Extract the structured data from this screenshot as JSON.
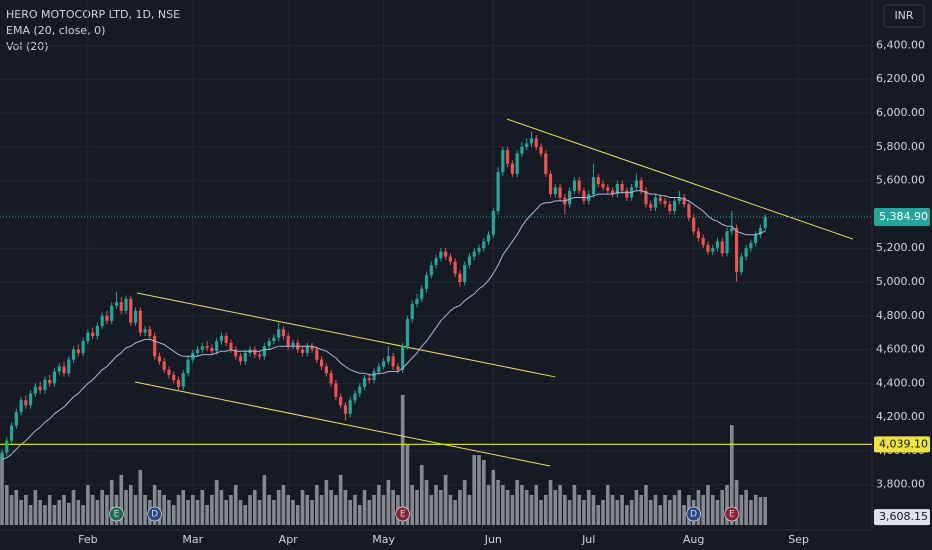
{
  "chart_data": {
    "type": "candlestick",
    "title": "HERO MOTOCORP LTD, 1D, NSE",
    "indicators": [
      "EMA (20, close, 0)",
      "Vol (20)"
    ],
    "currency": "INR",
    "ylim": [
      3532,
      6669
    ],
    "yticks": [
      {
        "value": 3800,
        "label": "3,800.00"
      },
      {
        "value": 4000,
        "label": "4,000.00"
      },
      {
        "value": 4200,
        "label": "4,200.00"
      },
      {
        "value": 4400,
        "label": "4,400.00"
      },
      {
        "value": 4600,
        "label": "4,600.00"
      },
      {
        "value": 4800,
        "label": "4,800.00"
      },
      {
        "value": 5000,
        "label": "5,000.00"
      },
      {
        "value": 5200,
        "label": "5,200.00"
      },
      {
        "value": 5400,
        "label": "5,400.00"
      },
      {
        "value": 5600,
        "label": "5,600.00"
      },
      {
        "value": 5800,
        "label": "5,800.00"
      },
      {
        "value": 6000,
        "label": "6,000.00"
      },
      {
        "value": 6200,
        "label": "6,200.00"
      },
      {
        "value": 6400,
        "label": "6,400.00"
      }
    ],
    "xticks": [
      {
        "value": 18,
        "label": "Feb"
      },
      {
        "value": 40,
        "label": "Mar"
      },
      {
        "value": 60,
        "label": "Apr"
      },
      {
        "value": 80,
        "label": "May"
      },
      {
        "value": 103,
        "label": "Jun"
      },
      {
        "value": 123,
        "label": "Jul"
      },
      {
        "value": 145,
        "label": "Aug"
      },
      {
        "value": 167,
        "label": "Sep"
      }
    ],
    "up_color": "#26a69a",
    "down_color": "#ef5350",
    "ema_color": "#a7b8d9",
    "volume_color": "#9a9ca3",
    "line_color": "#e6e35a",
    "candles": [
      [
        3960,
        4010,
        3930,
        3990
      ],
      [
        3990,
        4080,
        3970,
        4060
      ],
      [
        4060,
        4170,
        4040,
        4150
      ],
      [
        4150,
        4250,
        4130,
        4230
      ],
      [
        4230,
        4320,
        4210,
        4300
      ],
      [
        4300,
        4330,
        4250,
        4270
      ],
      [
        4270,
        4360,
        4250,
        4340
      ],
      [
        4340,
        4400,
        4320,
        4380
      ],
      [
        4380,
        4410,
        4340,
        4360
      ],
      [
        4360,
        4440,
        4340,
        4420
      ],
      [
        4420,
        4450,
        4380,
        4400
      ],
      [
        4400,
        4490,
        4380,
        4470
      ],
      [
        4470,
        4520,
        4450,
        4500
      ],
      [
        4500,
        4530,
        4440,
        4460
      ],
      [
        4460,
        4560,
        4440,
        4540
      ],
      [
        4540,
        4620,
        4520,
        4600
      ],
      [
        4600,
        4630,
        4560,
        4580
      ],
      [
        4580,
        4670,
        4560,
        4650
      ],
      [
        4650,
        4720,
        4630,
        4700
      ],
      [
        4700,
        4730,
        4660,
        4680
      ],
      [
        4680,
        4760,
        4660,
        4740
      ],
      [
        4740,
        4820,
        4720,
        4800
      ],
      [
        4800,
        4830,
        4750,
        4770
      ],
      [
        4770,
        4880,
        4750,
        4860
      ],
      [
        4860,
        4940,
        4840,
        4880
      ],
      [
        4880,
        4910,
        4810,
        4830
      ],
      [
        4830,
        4920,
        4810,
        4900
      ],
      [
        4900,
        4920,
        4740,
        4760
      ],
      [
        4760,
        4850,
        4740,
        4830
      ],
      [
        4830,
        4850,
        4680,
        4700
      ],
      [
        4700,
        4740,
        4680,
        4720
      ],
      [
        4720,
        4740,
        4660,
        4680
      ],
      [
        4680,
        4700,
        4540,
        4560
      ],
      [
        4560,
        4580,
        4510,
        4530
      ],
      [
        4530,
        4550,
        4460,
        4480
      ],
      [
        4480,
        4500,
        4430,
        4450
      ],
      [
        4450,
        4470,
        4400,
        4420
      ],
      [
        4420,
        4440,
        4360,
        4380
      ],
      [
        4380,
        4480,
        4360,
        4460
      ],
      [
        4460,
        4560,
        4440,
        4540
      ],
      [
        4540,
        4600,
        4520,
        4580
      ],
      [
        4580,
        4620,
        4560,
        4600
      ],
      [
        4600,
        4640,
        4580,
        4620
      ],
      [
        4620,
        4650,
        4590,
        4610
      ],
      [
        4610,
        4630,
        4570,
        4590
      ],
      [
        4590,
        4670,
        4570,
        4650
      ],
      [
        4650,
        4700,
        4630,
        4680
      ],
      [
        4680,
        4700,
        4620,
        4640
      ],
      [
        4640,
        4660,
        4580,
        4600
      ],
      [
        4600,
        4620,
        4540,
        4560
      ],
      [
        4560,
        4580,
        4510,
        4530
      ],
      [
        4530,
        4600,
        4510,
        4580
      ],
      [
        4580,
        4620,
        4560,
        4600
      ],
      [
        4600,
        4620,
        4550,
        4570
      ],
      [
        4570,
        4590,
        4540,
        4560
      ],
      [
        4560,
        4640,
        4540,
        4620
      ],
      [
        4620,
        4670,
        4600,
        4650
      ],
      [
        4650,
        4690,
        4630,
        4670
      ],
      [
        4670,
        4760,
        4650,
        4720
      ],
      [
        4720,
        4740,
        4660,
        4680
      ],
      [
        4680,
        4700,
        4600,
        4620
      ],
      [
        4620,
        4660,
        4600,
        4640
      ],
      [
        4640,
        4660,
        4580,
        4600
      ],
      [
        4600,
        4620,
        4560,
        4580
      ],
      [
        4580,
        4640,
        4560,
        4620
      ],
      [
        4620,
        4640,
        4580,
        4600
      ],
      [
        4600,
        4620,
        4520,
        4540
      ],
      [
        4540,
        4560,
        4480,
        4500
      ],
      [
        4500,
        4520,
        4440,
        4460
      ],
      [
        4460,
        4480,
        4380,
        4400
      ],
      [
        4400,
        4420,
        4300,
        4320
      ],
      [
        4320,
        4340,
        4250,
        4270
      ],
      [
        4270,
        4290,
        4180,
        4220
      ],
      [
        4220,
        4320,
        4200,
        4300
      ],
      [
        4300,
        4360,
        4280,
        4340
      ],
      [
        4340,
        4400,
        4320,
        4380
      ],
      [
        4380,
        4450,
        4360,
        4430
      ],
      [
        4430,
        4460,
        4400,
        4420
      ],
      [
        4420,
        4490,
        4400,
        4470
      ],
      [
        4470,
        4520,
        4450,
        4500
      ],
      [
        4500,
        4550,
        4480,
        4530
      ],
      [
        4530,
        4620,
        4510,
        4560
      ],
      [
        4560,
        4580,
        4480,
        4500
      ],
      [
        4500,
        4520,
        4460,
        4480
      ],
      [
        4480,
        4640,
        4460,
        4620
      ],
      [
        4620,
        4800,
        4600,
        4780
      ],
      [
        4780,
        4890,
        4760,
        4870
      ],
      [
        4870,
        4930,
        4850,
        4900
      ],
      [
        4900,
        4980,
        4880,
        4960
      ],
      [
        4960,
        5060,
        4940,
        5040
      ],
      [
        5040,
        5120,
        5020,
        5100
      ],
      [
        5100,
        5160,
        5080,
        5140
      ],
      [
        5140,
        5200,
        5120,
        5180
      ],
      [
        5180,
        5200,
        5130,
        5150
      ],
      [
        5150,
        5170,
        5100,
        5120
      ],
      [
        5120,
        5140,
        5030,
        5050
      ],
      [
        5050,
        5070,
        4970,
        5000
      ],
      [
        5000,
        5120,
        4980,
        5100
      ],
      [
        5100,
        5170,
        5080,
        5150
      ],
      [
        5150,
        5200,
        5130,
        5180
      ],
      [
        5180,
        5220,
        5160,
        5200
      ],
      [
        5200,
        5260,
        5180,
        5240
      ],
      [
        5240,
        5300,
        5220,
        5280
      ],
      [
        5280,
        5440,
        5260,
        5420
      ],
      [
        5420,
        5680,
        5400,
        5650
      ],
      [
        5650,
        5800,
        5630,
        5780
      ],
      [
        5780,
        5800,
        5680,
        5700
      ],
      [
        5700,
        5720,
        5620,
        5640
      ],
      [
        5640,
        5780,
        5620,
        5760
      ],
      [
        5760,
        5830,
        5740,
        5800
      ],
      [
        5800,
        5850,
        5780,
        5820
      ],
      [
        5820,
        5890,
        5800,
        5850
      ],
      [
        5850,
        5870,
        5780,
        5800
      ],
      [
        5800,
        5820,
        5740,
        5760
      ],
      [
        5760,
        5780,
        5620,
        5640
      ],
      [
        5640,
        5660,
        5500,
        5520
      ],
      [
        5520,
        5580,
        5500,
        5560
      ],
      [
        5560,
        5580,
        5480,
        5500
      ],
      [
        5500,
        5520,
        5400,
        5460
      ],
      [
        5460,
        5560,
        5440,
        5540
      ],
      [
        5540,
        5620,
        5520,
        5600
      ],
      [
        5600,
        5620,
        5520,
        5540
      ],
      [
        5540,
        5560,
        5460,
        5480
      ],
      [
        5480,
        5540,
        5460,
        5520
      ],
      [
        5520,
        5700,
        5500,
        5620
      ],
      [
        5620,
        5640,
        5560,
        5580
      ],
      [
        5580,
        5600,
        5540,
        5560
      ],
      [
        5560,
        5580,
        5520,
        5540
      ],
      [
        5540,
        5560,
        5500,
        5520
      ],
      [
        5520,
        5600,
        5500,
        5580
      ],
      [
        5580,
        5600,
        5520,
        5540
      ],
      [
        5540,
        5560,
        5480,
        5500
      ],
      [
        5500,
        5580,
        5480,
        5560
      ],
      [
        5560,
        5640,
        5540,
        5600
      ],
      [
        5600,
        5620,
        5520,
        5540
      ],
      [
        5540,
        5560,
        5440,
        5460
      ],
      [
        5460,
        5480,
        5420,
        5440
      ],
      [
        5440,
        5520,
        5420,
        5500
      ],
      [
        5500,
        5520,
        5460,
        5480
      ],
      [
        5480,
        5500,
        5440,
        5460
      ],
      [
        5460,
        5480,
        5400,
        5420
      ],
      [
        5420,
        5500,
        5400,
        5480
      ],
      [
        5480,
        5540,
        5460,
        5500
      ],
      [
        5500,
        5520,
        5440,
        5460
      ],
      [
        5460,
        5480,
        5360,
        5380
      ],
      [
        5380,
        5400,
        5280,
        5300
      ],
      [
        5300,
        5320,
        5240,
        5260
      ],
      [
        5260,
        5280,
        5200,
        5220
      ],
      [
        5220,
        5240,
        5160,
        5180
      ],
      [
        5180,
        5220,
        5160,
        5200
      ],
      [
        5200,
        5260,
        5180,
        5240
      ],
      [
        5240,
        5260,
        5150,
        5170
      ],
      [
        5170,
        5320,
        5150,
        5300
      ],
      [
        5300,
        5420,
        5280,
        5320
      ],
      [
        5320,
        5340,
        5000,
        5060
      ],
      [
        5060,
        5170,
        5040,
        5150
      ],
      [
        5150,
        5220,
        5130,
        5200
      ],
      [
        5200,
        5250,
        5180,
        5230
      ],
      [
        5230,
        5300,
        5210,
        5280
      ],
      [
        5280,
        5340,
        5260,
        5320
      ],
      [
        5320,
        5400,
        5300,
        5384.9
      ]
    ],
    "ema": [
      3950,
      3960,
      3980,
      4010,
      4040,
      4060,
      4090,
      4120,
      4140,
      4170,
      4190,
      4220,
      4240,
      4260,
      4290,
      4320,
      4340,
      4370,
      4400,
      4420,
      4450,
      4480,
      4500,
      4530,
      4560,
      4580,
      4610,
      4620,
      4640,
      4650,
      4660,
      4660,
      4650,
      4640,
      4630,
      4610,
      4590,
      4570,
      4560,
      4560,
      4560,
      4560,
      4570,
      4570,
      4570,
      4580,
      4590,
      4590,
      4600,
      4590,
      4590,
      4590,
      4590,
      4590,
      4590,
      4600,
      4600,
      4610,
      4620,
      4620,
      4620,
      4620,
      4620,
      4620,
      4620,
      4620,
      4610,
      4600,
      4590,
      4570,
      4550,
      4520,
      4500,
      4480,
      4470,
      4460,
      4460,
      4450,
      4450,
      4460,
      4460,
      4470,
      4470,
      4470,
      4490,
      4520,
      4550,
      4580,
      4620,
      4650,
      4690,
      4730,
      4770,
      4800,
      4830,
      4850,
      4860,
      4890,
      4910,
      4930,
      4960,
      4980,
      5010,
      5050,
      5100,
      5160,
      5200,
      5240,
      5280,
      5330,
      5370,
      5400,
      5430,
      5460,
      5470,
      5470,
      5480,
      5480,
      5480,
      5490,
      5500,
      5500,
      5500,
      5500,
      5510,
      5520,
      5520,
      5520,
      5520,
      5530,
      5530,
      5530,
      5530,
      5540,
      5540,
      5530,
      5520,
      5520,
      5510,
      5510,
      5500,
      5500,
      5500,
      5490,
      5480,
      5460,
      5440,
      5420,
      5390,
      5370,
      5360,
      5340,
      5330,
      5330,
      5300,
      5290,
      5280,
      5280,
      5280,
      5290,
      5300
    ],
    "volume": [
      70,
      40,
      30,
      35,
      25,
      30,
      20,
      35,
      25,
      20,
      30,
      20,
      25,
      30,
      22,
      35,
      25,
      20,
      40,
      30,
      25,
      35,
      30,
      45,
      30,
      50,
      35,
      40,
      30,
      55,
      30,
      25,
      40,
      35,
      30,
      25,
      20,
      30,
      35,
      25,
      30,
      25,
      35,
      20,
      30,
      45,
      35,
      25,
      30,
      40,
      25,
      20,
      30,
      35,
      25,
      50,
      30,
      25,
      35,
      40,
      30,
      25,
      20,
      35,
      30,
      25,
      40,
      30,
      45,
      35,
      30,
      50,
      35,
      25,
      30,
      20,
      35,
      25,
      30,
      40,
      30,
      45,
      35,
      30,
      130,
      80,
      40,
      35,
      60,
      45,
      30,
      40,
      35,
      50,
      30,
      25,
      35,
      45,
      30,
      70,
      70,
      65,
      40,
      55,
      45,
      40,
      35,
      30,
      45,
      40,
      35,
      30,
      40,
      25,
      30,
      45,
      35,
      40,
      30,
      25,
      40,
      30,
      25,
      35,
      30,
      20,
      25,
      40,
      30,
      25,
      30,
      20,
      25,
      35,
      30,
      40,
      25,
      30,
      20,
      30,
      25,
      30,
      35,
      20,
      30,
      25,
      35,
      30,
      40,
      30,
      25,
      35,
      40,
      100,
      45,
      30,
      35,
      25,
      30,
      28,
      28
    ],
    "trendlines": [
      {
        "x": [
          28.3,
          116
        ],
        "y": [
          4935,
          4438
        ]
      },
      {
        "x": [
          27.9,
          114.9
        ],
        "y": [
          4408,
          3911
        ]
      },
      {
        "x": [
          105.9,
          178.4
        ],
        "y": [
          5964,
          5254
        ]
      }
    ],
    "levels": [
      {
        "value": 4039.1,
        "label": "4,039.10",
        "color": "#f0e442"
      }
    ],
    "last_price": {
      "value": 5384.9,
      "label": "5,384.90"
    },
    "bottom_price": {
      "value": 3608.15,
      "label": "3,608.15"
    },
    "events": [
      {
        "label": "E",
        "x": 24,
        "color": "#1e6b52"
      },
      {
        "label": "D",
        "x": 32,
        "color": "#2a4a8a"
      },
      {
        "label": "E",
        "x": 84,
        "color": "#8a2434"
      },
      {
        "label": "D",
        "x": 145,
        "color": "#2a4a8a"
      },
      {
        "label": "E",
        "x": 153,
        "color": "#8a2434"
      }
    ]
  }
}
